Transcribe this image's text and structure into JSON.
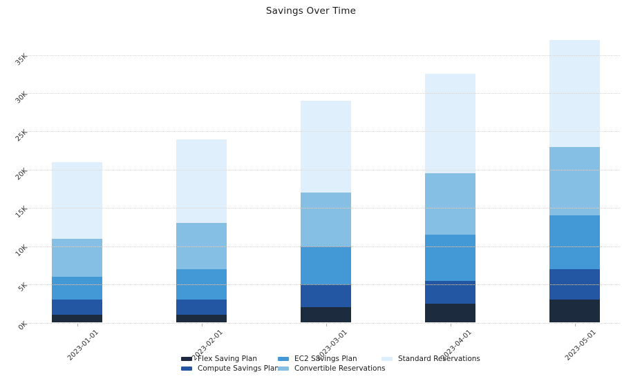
{
  "chart_data": {
    "type": "bar",
    "stacked": true,
    "title": "Savings Over Time",
    "xlabel": "",
    "ylabel": "",
    "categories": [
      "2023-01-01",
      "2023-02-01",
      "2023-03-01",
      "2023-04-01",
      "2023-05-01"
    ],
    "series": [
      {
        "name": "Flex Saving Plan",
        "color": "#1c2b3e",
        "values": [
          1000,
          1000,
          2000,
          2500,
          3000
        ]
      },
      {
        "name": "Compute Savings Plan",
        "color": "#2357a4",
        "values": [
          2000,
          2000,
          3000,
          3000,
          4000
        ]
      },
      {
        "name": "EC2 Savings Plan",
        "color": "#4299d5",
        "values": [
          3000,
          4000,
          5000,
          6000,
          7000
        ]
      },
      {
        "name": "Convertible Reservations",
        "color": "#85c0e4",
        "values": [
          5000,
          6000,
          7000,
          8000,
          9000
        ]
      },
      {
        "name": "Standard Reservations",
        "color": "#dfeffb",
        "values": [
          10000,
          11000,
          12000,
          13000,
          14000
        ]
      }
    ],
    "totals": [
      21000,
      24000,
      29000,
      32500,
      37000
    ],
    "ylim": [
      0,
      37000
    ],
    "ytick_values": [
      0,
      5000,
      10000,
      15000,
      20000,
      25000,
      30000,
      35000
    ],
    "yticks": [
      "0K",
      "5K",
      "10K",
      "15K",
      "20K",
      "25K",
      "30K",
      "35K"
    ],
    "grid": true,
    "gridline_style": "dotted",
    "legend_position": "bottom",
    "legend_columns": [
      [
        0,
        1
      ],
      [
        2,
        3
      ],
      [
        4
      ]
    ]
  }
}
